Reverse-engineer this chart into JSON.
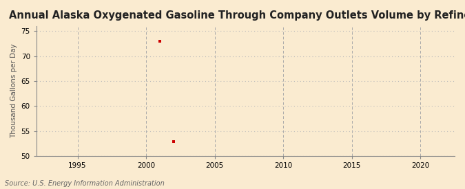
{
  "title": "Annual Alaska Oxygenated Gasoline Through Company Outlets Volume by Refiners",
  "ylabel": "Thousand Gallons per Day",
  "source": "Source: U.S. Energy Information Administration",
  "background_color": "#faebd0",
  "plot_bg_color": "#faebd0",
  "data_x": [
    2001,
    2002
  ],
  "data_y": [
    73.0,
    52.9
  ],
  "marker_color": "#cc0000",
  "marker_size": 3,
  "xlim": [
    1992,
    2022.5
  ],
  "ylim": [
    50,
    76
  ],
  "xticks": [
    1995,
    2000,
    2005,
    2010,
    2015,
    2020
  ],
  "yticks": [
    50,
    55,
    60,
    65,
    70,
    75
  ],
  "hgrid_color": "#bbbbbb",
  "vgrid_color": "#aaaaaa",
  "title_fontsize": 10.5,
  "label_fontsize": 7.5,
  "tick_fontsize": 7.5,
  "source_fontsize": 7
}
